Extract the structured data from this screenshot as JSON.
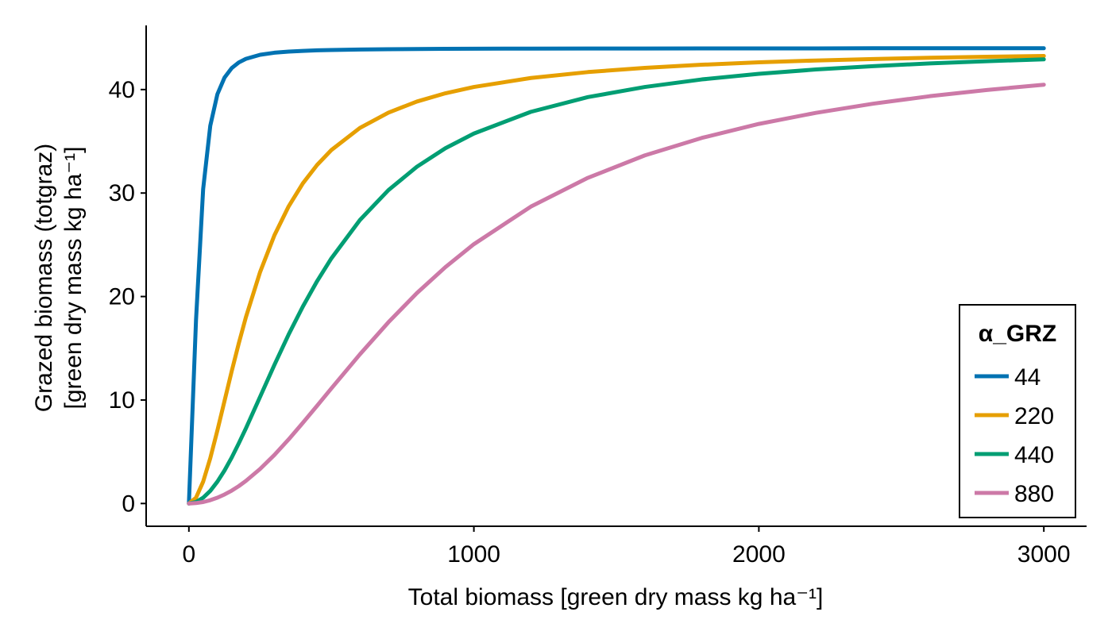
{
  "chart_data": {
    "type": "line",
    "title": "",
    "xlabel": "Total biomass [green dry mass kg ha⁻¹]",
    "ylabel_line1": "Grazed biomass (totgraz)",
    "ylabel_line2": "[green dry mass kg ha⁻¹]",
    "xlim": [
      -150,
      3150
    ],
    "ylim": [
      -2.2,
      46.2
    ],
    "xticks": [
      0,
      1000,
      2000,
      3000
    ],
    "yticks": [
      0,
      10,
      20,
      30,
      40
    ],
    "grid": false,
    "legend": {
      "title": "α_GRZ",
      "placement": "bottom-right"
    },
    "x": [
      0,
      25,
      50,
      75,
      100,
      125,
      150,
      175,
      200,
      250,
      300,
      350,
      400,
      450,
      500,
      600,
      700,
      800,
      900,
      1000,
      1200,
      1400,
      1600,
      1800,
      2000,
      2200,
      2400,
      2600,
      2800,
      3000
    ],
    "series": [
      {
        "name": "44",
        "color": "#0072B2",
        "values": [
          0,
          17.74,
          30.38,
          36.5,
          39.55,
          41.16,
          42.07,
          42.62,
          42.97,
          43.36,
          43.56,
          43.67,
          43.74,
          43.79,
          43.82,
          43.87,
          43.9,
          43.92,
          43.94,
          43.95,
          43.96,
          43.97,
          43.97,
          43.98,
          43.98,
          43.98,
          43.99,
          43.99,
          43.99,
          43.99
        ]
      },
      {
        "name": "220",
        "color": "#E69F00",
        "values": [
          0,
          0.56,
          2.11,
          4.38,
          7.06,
          9.91,
          12.76,
          15.47,
          18.0,
          22.38,
          25.91,
          28.71,
          30.94,
          32.72,
          34.16,
          36.29,
          37.77,
          38.84,
          39.64,
          40.25,
          41.12,
          41.69,
          42.1,
          42.4,
          42.63,
          42.81,
          42.95,
          43.07,
          43.17,
          43.25
        ]
      },
      {
        "name": "440",
        "color": "#009E73",
        "values": [
          0,
          0.14,
          0.56,
          1.22,
          2.11,
          3.19,
          4.43,
          5.81,
          7.26,
          10.32,
          13.39,
          16.33,
          19.04,
          21.49,
          23.69,
          27.39,
          30.28,
          32.54,
          34.33,
          35.75,
          37.85,
          39.27,
          40.25,
          40.98,
          41.52,
          41.94,
          42.26,
          42.53,
          42.74,
          42.92
        ]
      },
      {
        "name": "880",
        "color": "#CC79A7",
        "values": [
          0,
          0.04,
          0.14,
          0.32,
          0.56,
          0.87,
          1.24,
          1.68,
          2.18,
          3.34,
          4.69,
          6.19,
          7.8,
          9.45,
          11.12,
          14.41,
          17.51,
          20.33,
          22.84,
          25.06,
          28.69,
          31.47,
          33.64,
          35.33,
          36.68,
          37.75,
          38.63,
          39.36,
          39.96,
          40.47
        ]
      }
    ]
  }
}
